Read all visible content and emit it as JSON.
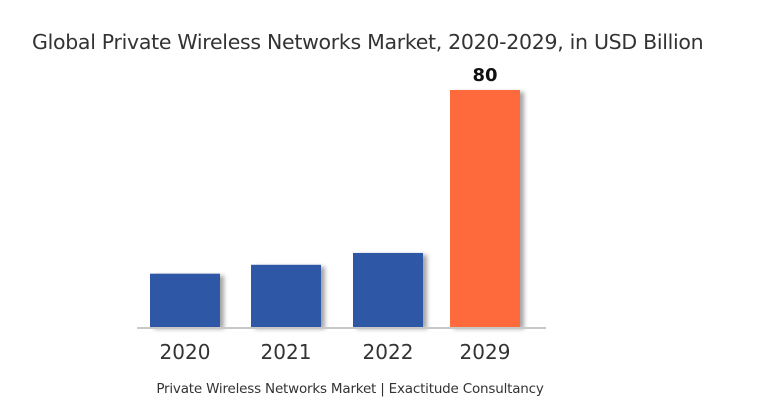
{
  "chart_data": {
    "type": "bar",
    "title": "Global Private Wireless Networks Market, 2020-2029, in USD Billion",
    "categories": [
      "2020",
      "2021",
      "2022",
      "2029"
    ],
    "values": [
      18,
      21,
      25,
      80
    ],
    "data_labels": [
      "",
      "",
      "",
      "80"
    ],
    "colors": [
      "#2e58a6",
      "#2e58a6",
      "#2e58a6",
      "#ff6b3d"
    ],
    "xlabel": "",
    "ylabel": "",
    "ylim": [
      0,
      80
    ],
    "grid": false,
    "legend": "none",
    "caption": "Private Wireless Networks Market | Exactitude Consultancy"
  }
}
